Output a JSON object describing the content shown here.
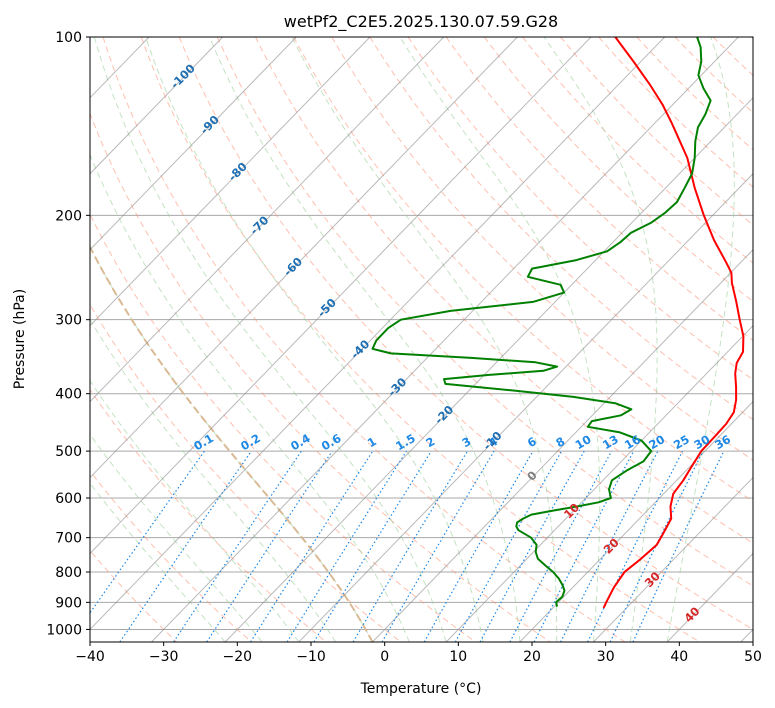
{
  "chart_data": {
    "type": "line",
    "subtype": "skew-T log-p diagram",
    "title": "wetPf2_C2E5.2025.130.07.59.G28",
    "xlabel": "Temperature (°C)",
    "ylabel": "Pressure (hPa)",
    "xlim": [
      -40,
      50
    ],
    "ylim": [
      1050,
      100
    ],
    "y_scale": "log",
    "x_ticks": [
      -40,
      -30,
      -20,
      -10,
      0,
      10,
      20,
      30,
      40,
      50
    ],
    "x_tick_labels": [
      "−40",
      "−30",
      "−20",
      "−10",
      "0",
      "10",
      "20",
      "30",
      "40",
      "50"
    ],
    "y_ticks": [
      1000,
      900,
      800,
      700,
      600,
      500,
      400,
      300,
      200,
      100
    ],
    "y_tick_labels": [
      "1000",
      "900",
      "800",
      "700",
      "600",
      "500",
      "400",
      "300",
      "200",
      "100"
    ],
    "grid": true,
    "series": [
      {
        "role": "temperature",
        "color": "#ff0000",
        "points": [
          [
            920,
            26.9
          ],
          [
            900,
            26.5
          ],
          [
            850,
            25.6
          ],
          [
            800,
            25.0
          ],
          [
            760,
            25.5
          ],
          [
            720,
            25.8
          ],
          [
            690,
            25.2
          ],
          [
            650,
            24.3
          ],
          [
            620,
            22.6
          ],
          [
            590,
            21.3
          ],
          [
            560,
            20.9
          ],
          [
            530,
            20.2
          ],
          [
            500,
            19.5
          ],
          [
            470,
            19.4
          ],
          [
            450,
            19.3
          ],
          [
            430,
            18.8
          ],
          [
            410,
            17.5
          ],
          [
            390,
            15.8
          ],
          [
            370,
            13.9
          ],
          [
            355,
            12.7
          ],
          [
            340,
            12.1
          ],
          [
            320,
            10.1
          ],
          [
            300,
            7.4
          ],
          [
            280,
            4.6
          ],
          [
            260,
            1.5
          ],
          [
            250,
            0.1
          ],
          [
            240,
            -2.0
          ],
          [
            220,
            -6.6
          ],
          [
            200,
            -11.2
          ],
          [
            180,
            -16.0
          ],
          [
            160,
            -21.0
          ],
          [
            150,
            -24.2
          ],
          [
            140,
            -27.6
          ],
          [
            130,
            -31.4
          ],
          [
            120,
            -35.9
          ],
          [
            110,
            -41.0
          ],
          [
            100,
            -46.7
          ]
        ]
      },
      {
        "role": "dewpoint",
        "color": "#008000",
        "points": [
          [
            915,
            20.4
          ],
          [
            900,
            19.7
          ],
          [
            880,
            19.8
          ],
          [
            860,
            19.3
          ],
          [
            840,
            18.2
          ],
          [
            820,
            16.9
          ],
          [
            800,
            15.3
          ],
          [
            780,
            13.4
          ],
          [
            760,
            11.5
          ],
          [
            740,
            10.3
          ],
          [
            720,
            9.5
          ],
          [
            700,
            7.8
          ],
          [
            680,
            5.1
          ],
          [
            670,
            4.3
          ],
          [
            660,
            3.9
          ],
          [
            650,
            4.2
          ],
          [
            640,
            4.8
          ],
          [
            630,
            7.2
          ],
          [
            620,
            10.0
          ],
          [
            610,
            12.3
          ],
          [
            600,
            13.4
          ],
          [
            580,
            12.0
          ],
          [
            560,
            11.2
          ],
          [
            540,
            11.9
          ],
          [
            520,
            13.0
          ],
          [
            500,
            12.7
          ],
          [
            480,
            10.0
          ],
          [
            465,
            6.0
          ],
          [
            455,
            0.9
          ],
          [
            445,
            0.7
          ],
          [
            435,
            3.9
          ],
          [
            425,
            4.5
          ],
          [
            415,
            1.5
          ],
          [
            405,
            -5.0
          ],
          [
            395,
            -14.0
          ],
          [
            385,
            -24.1
          ],
          [
            378,
            -24.9
          ],
          [
            372,
            -19.5
          ],
          [
            366,
            -12.5
          ],
          [
            360,
            -11.2
          ],
          [
            354,
            -14.7
          ],
          [
            348,
            -24.0
          ],
          [
            342,
            -35.5
          ],
          [
            336,
            -38.6
          ],
          [
            325,
            -39.2
          ],
          [
            310,
            -39.2
          ],
          [
            300,
            -38.6
          ],
          [
            290,
            -33.0
          ],
          [
            280,
            -23.0
          ],
          [
            270,
            -20.0
          ],
          [
            262,
            -21.5
          ],
          [
            254,
            -27.0
          ],
          [
            246,
            -27.5
          ],
          [
            238,
            -22.6
          ],
          [
            230,
            -19.6
          ],
          [
            222,
            -19.0
          ],
          [
            214,
            -18.8
          ],
          [
            206,
            -17.4
          ],
          [
            198,
            -16.8
          ],
          [
            190,
            -16.6
          ],
          [
            180,
            -17.4
          ],
          [
            170,
            -18.3
          ],
          [
            160,
            -20.0
          ],
          [
            150,
            -22.1
          ],
          [
            142,
            -23.6
          ],
          [
            135,
            -24.3
          ],
          [
            128,
            -25.4
          ],
          [
            122,
            -28.0
          ],
          [
            116,
            -30.4
          ],
          [
            110,
            -31.8
          ],
          [
            104,
            -33.8
          ],
          [
            100,
            -35.6
          ]
        ]
      }
    ],
    "background_lines": {
      "dry_adiabats_color": "#ff8c6e",
      "moist_adiabats_color": "#9ccf9c",
      "mixing_ratio_color": "#1e88e5",
      "isotherm_color": "#8c8c8c",
      "isobar_color": "#a8a8a8",
      "freezing_adiabat_color": "#d8b48c"
    },
    "isotherm_labels": [
      {
        "text": "-100",
        "color": "#1f6fb2"
      },
      {
        "text": "-90",
        "color": "#1f6fb2"
      },
      {
        "text": "-80",
        "color": "#1f6fb2"
      },
      {
        "text": "-70",
        "color": "#1f6fb2"
      },
      {
        "text": "-60",
        "color": "#1f6fb2"
      },
      {
        "text": "-50",
        "color": "#1f6fb2"
      },
      {
        "text": "-40",
        "color": "#1f6fb2"
      },
      {
        "text": "-30",
        "color": "#1f6fb2"
      },
      {
        "text": "-20",
        "color": "#1f6fb2"
      },
      {
        "text": "-10",
        "color": "#1f6fb2"
      },
      {
        "text": "0",
        "color": "#808080"
      },
      {
        "text": "10",
        "color": "#d62728"
      },
      {
        "text": "20",
        "color": "#d62728"
      },
      {
        "text": "30",
        "color": "#d62728"
      },
      {
        "text": "40",
        "color": "#d62728"
      }
    ],
    "mixing_ratio_labels": [
      "0.1",
      "0.2",
      "0.4",
      "0.6",
      "1",
      "1.5",
      "2",
      "3",
      "4",
      "6",
      "8",
      "10",
      "13",
      "16",
      "20",
      "25",
      "30",
      "36"
    ]
  }
}
